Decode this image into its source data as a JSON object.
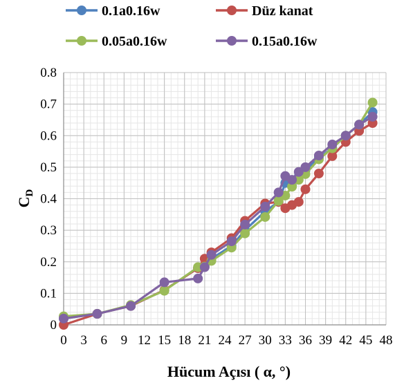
{
  "chart_data": {
    "type": "line",
    "title": "",
    "xlabel": "Hücum Açısı ( α, °)",
    "ylabel_main": "C",
    "ylabel_sub": "D",
    "xlim": [
      0,
      48
    ],
    "ylim": [
      0,
      0.8
    ],
    "x_ticks": [
      0,
      3,
      6,
      9,
      12,
      15,
      18,
      21,
      24,
      27,
      30,
      33,
      36,
      39,
      42,
      45,
      48
    ],
    "y_ticks": [
      0,
      0.1,
      0.2,
      0.3,
      0.4,
      0.5,
      0.6,
      0.7,
      0.8
    ],
    "y_tick_labels": [
      "0",
      "0.1",
      "0.2",
      "0.3",
      "0.4",
      "0.5",
      "0.6",
      "0.7",
      "0.8"
    ],
    "grid": true,
    "legend_position": "top",
    "series": [
      {
        "name": "0.1a0.16w",
        "color": "#4f81bd",
        "x": [
          0,
          5,
          10,
          15,
          20,
          21,
          22,
          25,
          27,
          30,
          32,
          33,
          34,
          35,
          36,
          38,
          40,
          42,
          44,
          46
        ],
        "y": [
          0.02,
          0.035,
          0.06,
          0.11,
          0.18,
          0.19,
          0.21,
          0.25,
          0.3,
          0.36,
          0.39,
          0.45,
          0.44,
          0.47,
          0.49,
          0.53,
          0.56,
          0.6,
          0.635,
          0.675
        ]
      },
      {
        "name": "Düz kanat",
        "color": "#c0504d",
        "x": [
          0,
          5,
          10,
          15,
          20,
          21,
          22,
          25,
          27,
          30,
          32,
          33,
          34,
          35,
          36,
          38,
          40,
          42,
          44,
          46
        ],
        "y": [
          0.0,
          0.035,
          0.06,
          0.11,
          0.18,
          0.21,
          0.23,
          0.275,
          0.33,
          0.385,
          0.39,
          0.37,
          0.38,
          0.39,
          0.43,
          0.48,
          0.535,
          0.58,
          0.615,
          0.64
        ]
      },
      {
        "name": "0.05a0.16w",
        "color": "#9bbb59",
        "x": [
          0,
          5,
          10,
          15,
          20,
          21,
          22,
          25,
          27,
          30,
          32,
          33,
          34,
          35,
          36,
          38,
          40,
          42,
          44,
          46
        ],
        "y": [
          0.027,
          0.035,
          0.063,
          0.108,
          0.183,
          0.185,
          0.203,
          0.245,
          0.29,
          0.342,
          0.393,
          0.41,
          0.438,
          0.46,
          0.478,
          0.525,
          0.56,
          0.6,
          0.635,
          0.705
        ]
      },
      {
        "name": "0.15a0.16w",
        "color": "#8064a2",
        "x": [
          0,
          5,
          10,
          15,
          20,
          21,
          22,
          25,
          27,
          30,
          32,
          33,
          34,
          35,
          36,
          38,
          40,
          42,
          44,
          46
        ],
        "y": [
          0.02,
          0.035,
          0.06,
          0.135,
          0.147,
          0.183,
          0.222,
          0.265,
          0.318,
          0.375,
          0.42,
          0.472,
          0.46,
          0.485,
          0.5,
          0.537,
          0.572,
          0.6,
          0.635,
          0.66
        ]
      }
    ]
  }
}
